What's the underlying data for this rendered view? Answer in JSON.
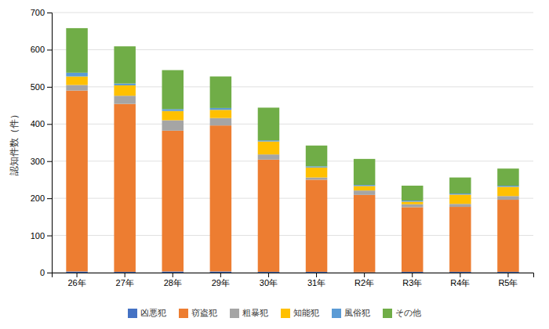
{
  "chart_data": {
    "type": "bar",
    "stacked": true,
    "categories": [
      "26年",
      "27年",
      "28年",
      "29年",
      "30年",
      "31年",
      "R2年",
      "R3年",
      "R4年",
      "R5年"
    ],
    "series": [
      {
        "name": "凶悪犯",
        "color": "#4472C4",
        "values": [
          3,
          2,
          3,
          3,
          2,
          2,
          1,
          2,
          2,
          2
        ]
      },
      {
        "name": "窃盗犯",
        "color": "#ED7D31",
        "values": [
          487,
          452,
          379,
          393,
          302,
          248,
          208,
          174,
          175,
          194
        ]
      },
      {
        "name": "粗暴犯",
        "color": "#A5A5A5",
        "values": [
          15,
          22,
          28,
          20,
          14,
          6,
          12,
          8,
          8,
          10
        ]
      },
      {
        "name": "知能犯",
        "color": "#FFC000",
        "values": [
          23,
          28,
          25,
          22,
          35,
          27,
          12,
          7,
          25,
          25
        ]
      },
      {
        "name": "風俗犯",
        "color": "#5B9BD5",
        "values": [
          10,
          5,
          5,
          5,
          3,
          3,
          3,
          3,
          3,
          3
        ]
      },
      {
        "name": "その他",
        "color": "#70AD47",
        "values": [
          120,
          100,
          105,
          85,
          88,
          56,
          70,
          40,
          43,
          46
        ]
      }
    ],
    "ylabel": "認知件数（件）",
    "ylim": [
      0,
      700
    ],
    "yticks": [
      0,
      100,
      200,
      300,
      400,
      500,
      600,
      700
    ],
    "grid": true,
    "legend": "bottom"
  }
}
